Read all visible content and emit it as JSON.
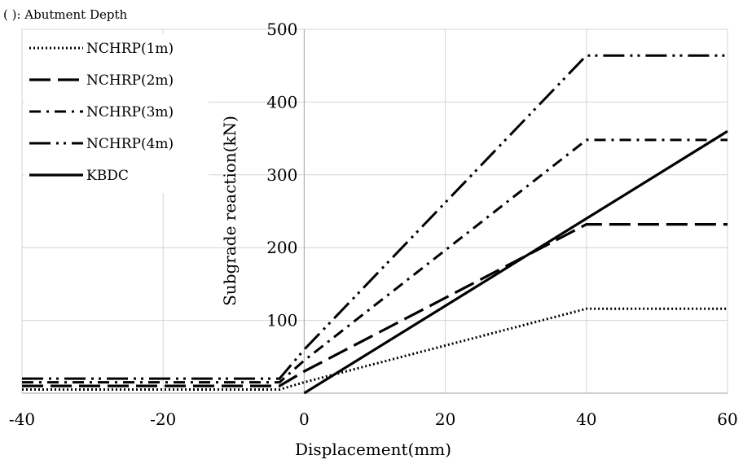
{
  "chart_data": {
    "type": "line",
    "note": "( ): Abutment Depth",
    "xlabel": "Displacement(mm)",
    "ylabel": "Subgrade reaction(kN)",
    "xlim": [
      -40,
      60
    ],
    "ylim": [
      0,
      500
    ],
    "xticks": [
      -40,
      -20,
      0,
      20,
      40,
      60
    ],
    "yticks": [
      100,
      200,
      300,
      400,
      500
    ],
    "grid": true,
    "legend_position": "top-left",
    "series": [
      {
        "name": "NCHRP(1m)",
        "dash": "dotted",
        "x": [
          -40,
          -3.5,
          0,
          40,
          60
        ],
        "y": [
          5,
          5,
          15,
          116,
          116
        ]
      },
      {
        "name": "NCHRP(2m)",
        "dash": "long-dash",
        "x": [
          -40,
          -3.5,
          0,
          40,
          60
        ],
        "y": [
          10,
          10,
          30,
          232,
          232
        ]
      },
      {
        "name": "NCHRP(3m)",
        "dash": "dash-dot",
        "x": [
          -40,
          -3.5,
          0,
          40,
          60
        ],
        "y": [
          15,
          15,
          45,
          348,
          348
        ]
      },
      {
        "name": "NCHRP(4m)",
        "dash": "long-dash-dot-dot",
        "x": [
          -40,
          -3.5,
          0,
          40,
          60
        ],
        "y": [
          20,
          20,
          60,
          464,
          464
        ]
      },
      {
        "name": "KBDC",
        "dash": "solid",
        "x": [
          0,
          60
        ],
        "y": [
          0,
          360
        ]
      }
    ]
  }
}
